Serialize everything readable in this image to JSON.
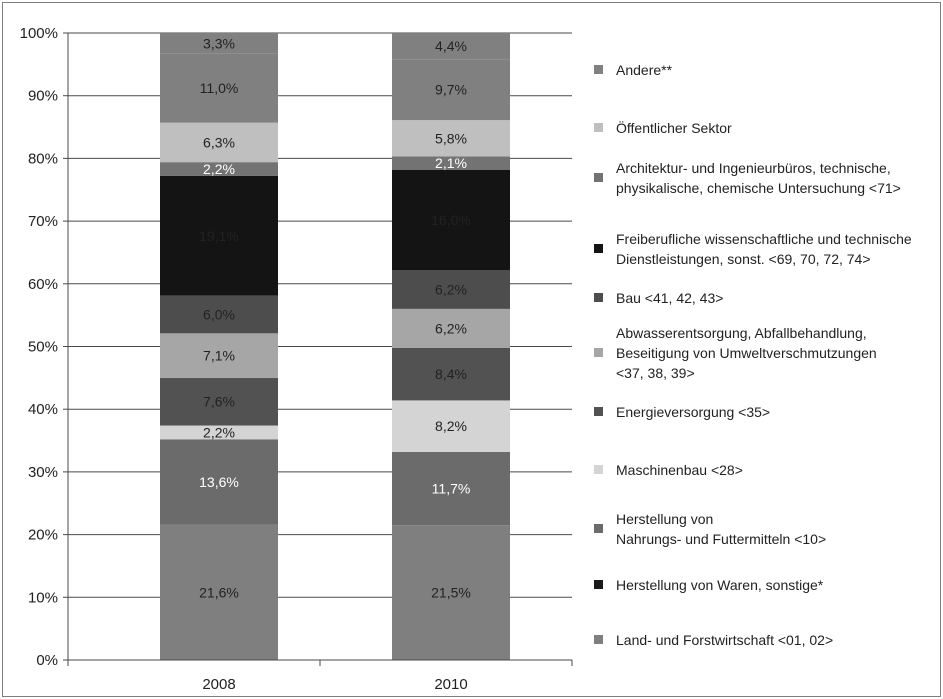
{
  "chart_data": {
    "type": "bar",
    "stacked": true,
    "title": "",
    "xlabel": "",
    "ylabel": "",
    "ylim": [
      0,
      100
    ],
    "y_ticks": [
      "0%",
      "10%",
      "20%",
      "30%",
      "40%",
      "50%",
      "60%",
      "70%",
      "80%",
      "90%",
      "100%"
    ],
    "categories": [
      "2008",
      "2010"
    ],
    "grid": true,
    "legend_position": "right",
    "series": [
      {
        "name": "Land- und Forstwirtschaft <01, 02>",
        "color": "#7f7f7f",
        "label_color": "#222222",
        "values": [
          21.6,
          21.5
        ],
        "labels": [
          "21,6%",
          "21,5%"
        ]
      },
      {
        "name": "Herstellung von Waren, sonstige*",
        "color": "#1a1a1a",
        "label_color": "#ffffff",
        "values": [
          0,
          0
        ],
        "labels": [
          "",
          ""
        ]
      },
      {
        "name": "Herstellung von Nahrungs- und Futtermitteln <10>",
        "color": "#6b6b6b",
        "label_color": "#ffffff",
        "values": [
          13.6,
          11.7
        ],
        "labels": [
          "13,6%",
          "11,7%"
        ]
      },
      {
        "name": "Maschinenbau <28>",
        "color": "#d4d4d4",
        "label_color": "#222222",
        "values": [
          2.2,
          8.2
        ],
        "labels": [
          "2,2%",
          "8,2%"
        ]
      },
      {
        "name": "Energieversorgung <35>",
        "color": "#525252",
        "label_color": "#222222",
        "values": [
          7.6,
          8.4
        ],
        "labels": [
          "7,6%",
          "8,4%"
        ]
      },
      {
        "name": "Abwasserentsorgung, Abfallbehandlung, Beseitigung von Umweltverschmutzungen <37, 38, 39>",
        "color": "#a6a6a6",
        "label_color": "#222222",
        "values": [
          7.1,
          6.2
        ],
        "labels": [
          "7,1%",
          "6,2%"
        ]
      },
      {
        "name": "Bau <41, 42, 43>",
        "color": "#4d4d4d",
        "label_color": "#222222",
        "values": [
          6.0,
          6.2
        ],
        "labels": [
          "6,0%",
          "6,2%"
        ]
      },
      {
        "name": "Freiberufliche wissenschaftliche und technische Dienstleistungen, sonst. <69, 70, 72, 74>",
        "color": "#141414",
        "label_color": "#222222",
        "values": [
          19.1,
          16.0
        ],
        "labels": [
          "19,1%",
          "16,0%"
        ]
      },
      {
        "name": "Architektur- und Ingenieurbüros, technische, physikalische, chemische Untersuchung <71>",
        "color": "#737373",
        "label_color": "#ffffff",
        "values": [
          2.2,
          2.1
        ],
        "labels": [
          "2,2%",
          "2,1%"
        ]
      },
      {
        "name": "Öffentlicher Sektor",
        "color": "#bfbfbf",
        "label_color": "#222222",
        "values": [
          6.3,
          5.8
        ],
        "labels": [
          "6,3%",
          "5,8%"
        ]
      },
      {
        "name": "Andere**",
        "color": "#808080",
        "label_color": "#222222",
        "values": [
          11.0,
          9.7
        ],
        "labels": [
          "11,0%",
          "9,7%"
        ]
      }
    ],
    "top_labels": [
      "3,3%",
      "4,4%"
    ]
  },
  "legend": [
    {
      "lines": [
        "Andere**"
      ],
      "color": "#808080"
    },
    {
      "lines": [
        "Öffentlicher Sektor"
      ],
      "color": "#bfbfbf"
    },
    {
      "lines": [
        "Architektur- und Ingenieurbüros, technische,",
        "physikalische, chemische Untersuchung <71>"
      ],
      "color": "#737373"
    },
    {
      "lines": [
        "Freiberufliche wissenschaftliche und technische",
        "Dienstleistungen, sonst. <69, 70, 72, 74>"
      ],
      "color": "#141414"
    },
    {
      "lines": [
        "Bau <41, 42, 43>"
      ],
      "color": "#4d4d4d"
    },
    {
      "lines": [
        "Abwasserentsorgung, Abfallbehandlung,",
        "Beseitigung von Umweltverschmutzungen",
        "<37, 38, 39>"
      ],
      "color": "#a6a6a6"
    },
    {
      "lines": [
        "Energieversorgung <35>"
      ],
      "color": "#525252"
    },
    {
      "lines": [
        "Maschinenbau <28>"
      ],
      "color": "#d4d4d4"
    },
    {
      "lines": [
        "Herstellung von",
        "Nahrungs- und Futtermitteln <10>"
      ],
      "color": "#6b6b6b"
    },
    {
      "lines": [
        "Herstellung von Waren, sonstige*"
      ],
      "color": "#1a1a1a"
    },
    {
      "lines": [
        "Land- und Forstwirtschaft <01, 02>"
      ],
      "color": "#7f7f7f"
    }
  ]
}
